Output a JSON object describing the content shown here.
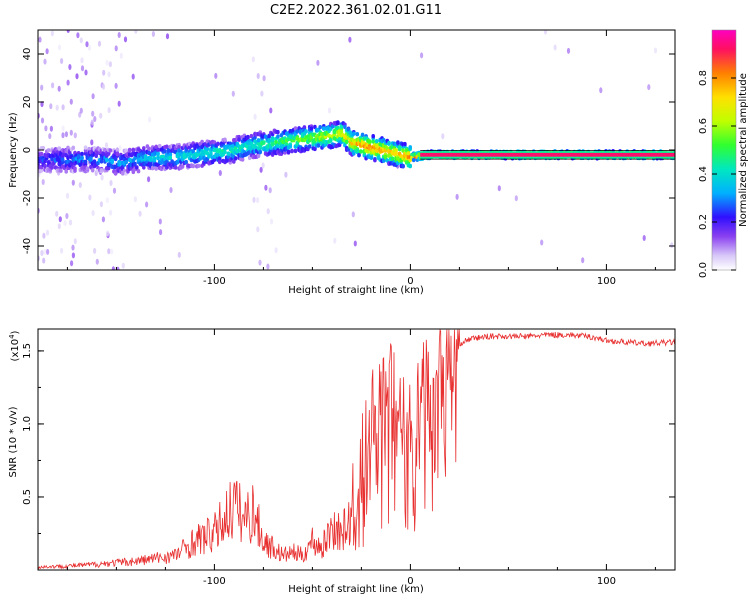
{
  "title": "C2E2.2022.361.02.01.G11",
  "chart_data": [
    {
      "type": "heatmap",
      "xlabel": "Height of straight line (km)",
      "ylabel": "Frequency (Hz)",
      "xlim": [
        -190,
        135
      ],
      "ylim": [
        -50,
        50
      ],
      "x_ticks": [
        -100,
        0,
        100
      ],
      "y_ticks": [
        -40,
        -20,
        0,
        20,
        40
      ],
      "colorbar": {
        "label": "Normalized spectral amplitude",
        "range": [
          0,
          1
        ],
        "ticks": [
          0.0,
          0.2,
          0.4,
          0.6,
          0.8
        ],
        "colors": [
          "#ffffff",
          "#d8c8f8",
          "#8a40f0",
          "#3010ff",
          "#00b0ff",
          "#00e8c0",
          "#30ff30",
          "#c0ff00",
          "#ffe000",
          "#ff8000",
          "#ff1060",
          "#ff00c0"
        ]
      },
      "ridge": {
        "x": [
          -185,
          -170,
          -160,
          -150,
          -145,
          -140,
          -130,
          -120,
          -110,
          -100,
          -90,
          -80,
          -70,
          -60,
          -50,
          -40,
          -35,
          -30,
          -25,
          -20,
          -15,
          -10,
          -5,
          0,
          10,
          20,
          40,
          60,
          80,
          90,
          100,
          110,
          120,
          135
        ],
        "freq": [
          -4,
          -4,
          -4,
          -5,
          -5,
          -4,
          -3,
          -3,
          -2,
          -1,
          0,
          2,
          3,
          4,
          5,
          6,
          7,
          3,
          2,
          1,
          0,
          -1,
          -2,
          -3,
          -2,
          -2,
          -2,
          -2,
          -2,
          -2,
          -2,
          -2,
          -2,
          -2
        ],
        "amplitude": [
          0.25,
          0.3,
          0.3,
          0.35,
          0.3,
          0.35,
          0.4,
          0.4,
          0.4,
          0.45,
          0.45,
          0.45,
          0.5,
          0.55,
          0.6,
          0.65,
          0.7,
          0.75,
          0.8,
          0.85,
          0.8,
          0.75,
          0.8,
          0.85,
          0.85,
          0.9,
          0.95,
          0.95,
          0.95,
          0.9,
          0.95,
          0.95,
          0.95,
          0.95
        ]
      }
    },
    {
      "type": "line",
      "xlabel": "Height of straight line (km)",
      "ylabel": "SNR (10 * v/v)",
      "scale_label": "(x10",
      "scale_exponent": "4",
      "scale_close": ")",
      "xlim": [
        -190,
        135
      ],
      "ylim": [
        0,
        1.65
      ],
      "x_ticks": [
        -100,
        0,
        100
      ],
      "y_ticks": [
        0.5,
        1.0,
        1.5
      ],
      "color": "#e83030",
      "series": [
        {
          "x": [
            -190,
            -170,
            -160,
            -150,
            -140,
            -130,
            -120,
            -115,
            -110,
            -100,
            -95,
            -90,
            -85,
            -80,
            -75,
            -70,
            -65,
            -60,
            -55,
            -50,
            -45,
            -40,
            -35,
            -30,
            -27,
            -25,
            -22,
            -20,
            -17,
            -15,
            -12,
            -10,
            -7,
            -5,
            -2,
            0,
            3,
            5,
            8,
            10,
            13,
            15,
            20,
            25,
            30,
            40,
            50,
            60,
            70,
            80,
            90,
            95,
            100,
            110,
            120,
            135
          ],
          "y": [
            0.02,
            0.03,
            0.04,
            0.05,
            0.06,
            0.08,
            0.1,
            0.15,
            0.2,
            0.25,
            0.35,
            0.45,
            0.35,
            0.4,
            0.2,
            0.15,
            0.1,
            0.12,
            0.1,
            0.2,
            0.15,
            0.3,
            0.25,
            0.35,
            0.5,
            0.7,
            0.85,
            1.1,
            0.9,
            1.25,
            1.0,
            1.3,
            1.1,
            1.2,
            0.9,
            1.1,
            1.0,
            1.2,
            1.35,
            1.1,
            1.4,
            1.45,
            1.5,
            1.55,
            1.58,
            1.6,
            1.6,
            1.6,
            1.61,
            1.61,
            1.6,
            1.59,
            1.57,
            1.56,
            1.55,
            1.56
          ]
        }
      ]
    }
  ]
}
